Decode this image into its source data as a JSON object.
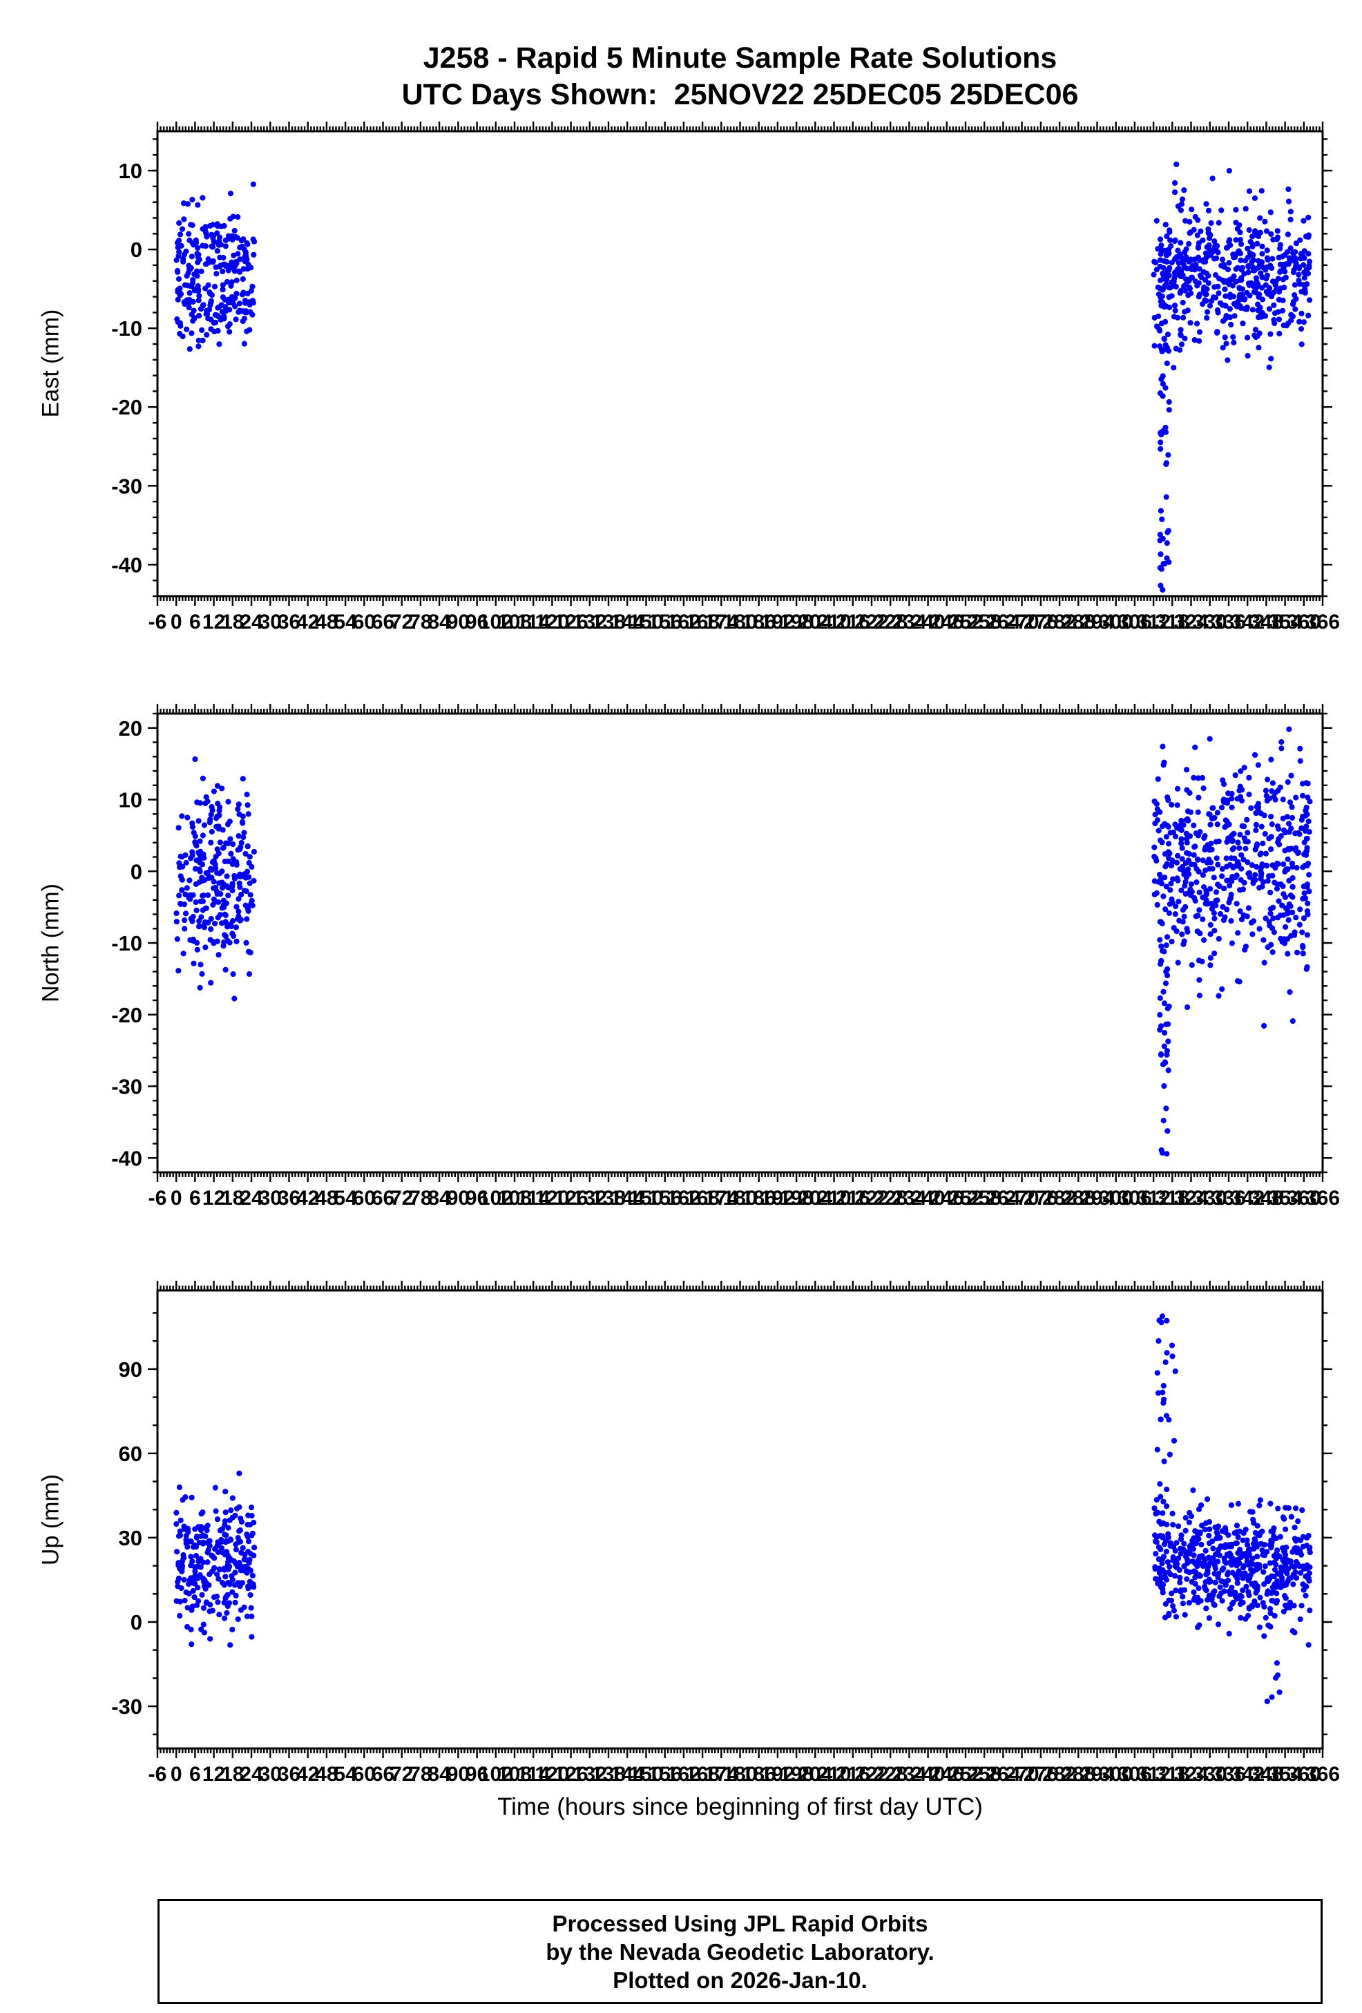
{
  "chart_data": {
    "type": "scatter",
    "title_line1": "J258 - Rapid 5 Minute Sample Rate Solutions",
    "title_line2": "UTC Days Shown:  25NOV22 25DEC05 25DEC06",
    "xlabel": "Time (hours since beginning of first day UTC)",
    "xlim": [
      -6,
      366
    ],
    "x_major_tick_step": 6,
    "x_minor_tick_step": 1,
    "x_tick_labels": [
      -6,
      0,
      6,
      12,
      18,
      24,
      30,
      36,
      42,
      48,
      54,
      60,
      66,
      72,
      78,
      84,
      90,
      96,
      102,
      108,
      114,
      120,
      126,
      132,
      138,
      144,
      150,
      156,
      162,
      168,
      174,
      180,
      186,
      192,
      198,
      204,
      210,
      216,
      222,
      228,
      234,
      240,
      246,
      252,
      258,
      264,
      270,
      276,
      282,
      288,
      294,
      300,
      306,
      312,
      318,
      324,
      330,
      336,
      342,
      348,
      354,
      360,
      366
    ],
    "point_color": "#0000EE",
    "axis_color": "#000000",
    "seed": 42,
    "footer_lines": [
      "Processed Using JPL Rapid Orbits",
      "by the Nevada Geodetic Laboratory.",
      "Plotted on 2026-Jan-10."
    ],
    "subplots": [
      {
        "id": "east",
        "ylabel": "East (mm)",
        "ylim": [
          -44,
          15
        ],
        "yticks": [
          -40,
          -30,
          -20,
          -10,
          0,
          10
        ],
        "y_minor_step": 2,
        "clusters": [
          {
            "n": 280,
            "x_range": [
              0,
              25
            ],
            "y_mean": -4,
            "y_std": 4.5,
            "y_min": -14,
            "y_max": 12
          },
          {
            "n": 560,
            "x_range": [
              312,
              362
            ],
            "y_mean": -3.5,
            "y_std": 4.5,
            "y_min": -15,
            "y_max": 14
          },
          {
            "n": 42,
            "x_range": [
              314,
              317
            ],
            "y_uniform": [
              -43.5,
              -12
            ]
          }
        ]
      },
      {
        "id": "north",
        "ylabel": "North (mm)",
        "ylim": [
          -42,
          22
        ],
        "yticks": [
          -40,
          -30,
          -20,
          -10,
          0,
          10,
          20
        ],
        "y_minor_step": 2,
        "clusters": [
          {
            "n": 280,
            "x_range": [
              0,
              25
            ],
            "y_mean": -1,
            "y_std": 6,
            "y_min": -20,
            "y_max": 17
          },
          {
            "n": 560,
            "x_range": [
              312,
              362
            ],
            "y_mean": 1,
            "y_std": 7,
            "y_min": -25,
            "y_max": 21
          },
          {
            "n": 36,
            "x_range": [
              314,
              317
            ],
            "y_uniform": [
              -39.5,
              -10
            ]
          }
        ]
      },
      {
        "id": "up",
        "ylabel": "Up (mm)",
        "ylim": [
          -45,
          118
        ],
        "yticks": [
          -30,
          0,
          30,
          60,
          90
        ],
        "y_minor_step": 10,
        "clusters": [
          {
            "n": 280,
            "x_range": [
              0,
              25
            ],
            "y_mean": 22,
            "y_std": 12,
            "y_min": -18,
            "y_max": 65
          },
          {
            "n": 560,
            "x_range": [
              312,
              362
            ],
            "y_mean": 20,
            "y_std": 10,
            "y_min": -12,
            "y_max": 55
          },
          {
            "n": 30,
            "x_range": [
              313,
              319
            ],
            "y_uniform": [
              38,
              114
            ]
          },
          {
            "n": 10,
            "x_range": [
              347,
              357
            ],
            "y_uniform": [
              -29,
              8
            ]
          }
        ]
      }
    ]
  }
}
